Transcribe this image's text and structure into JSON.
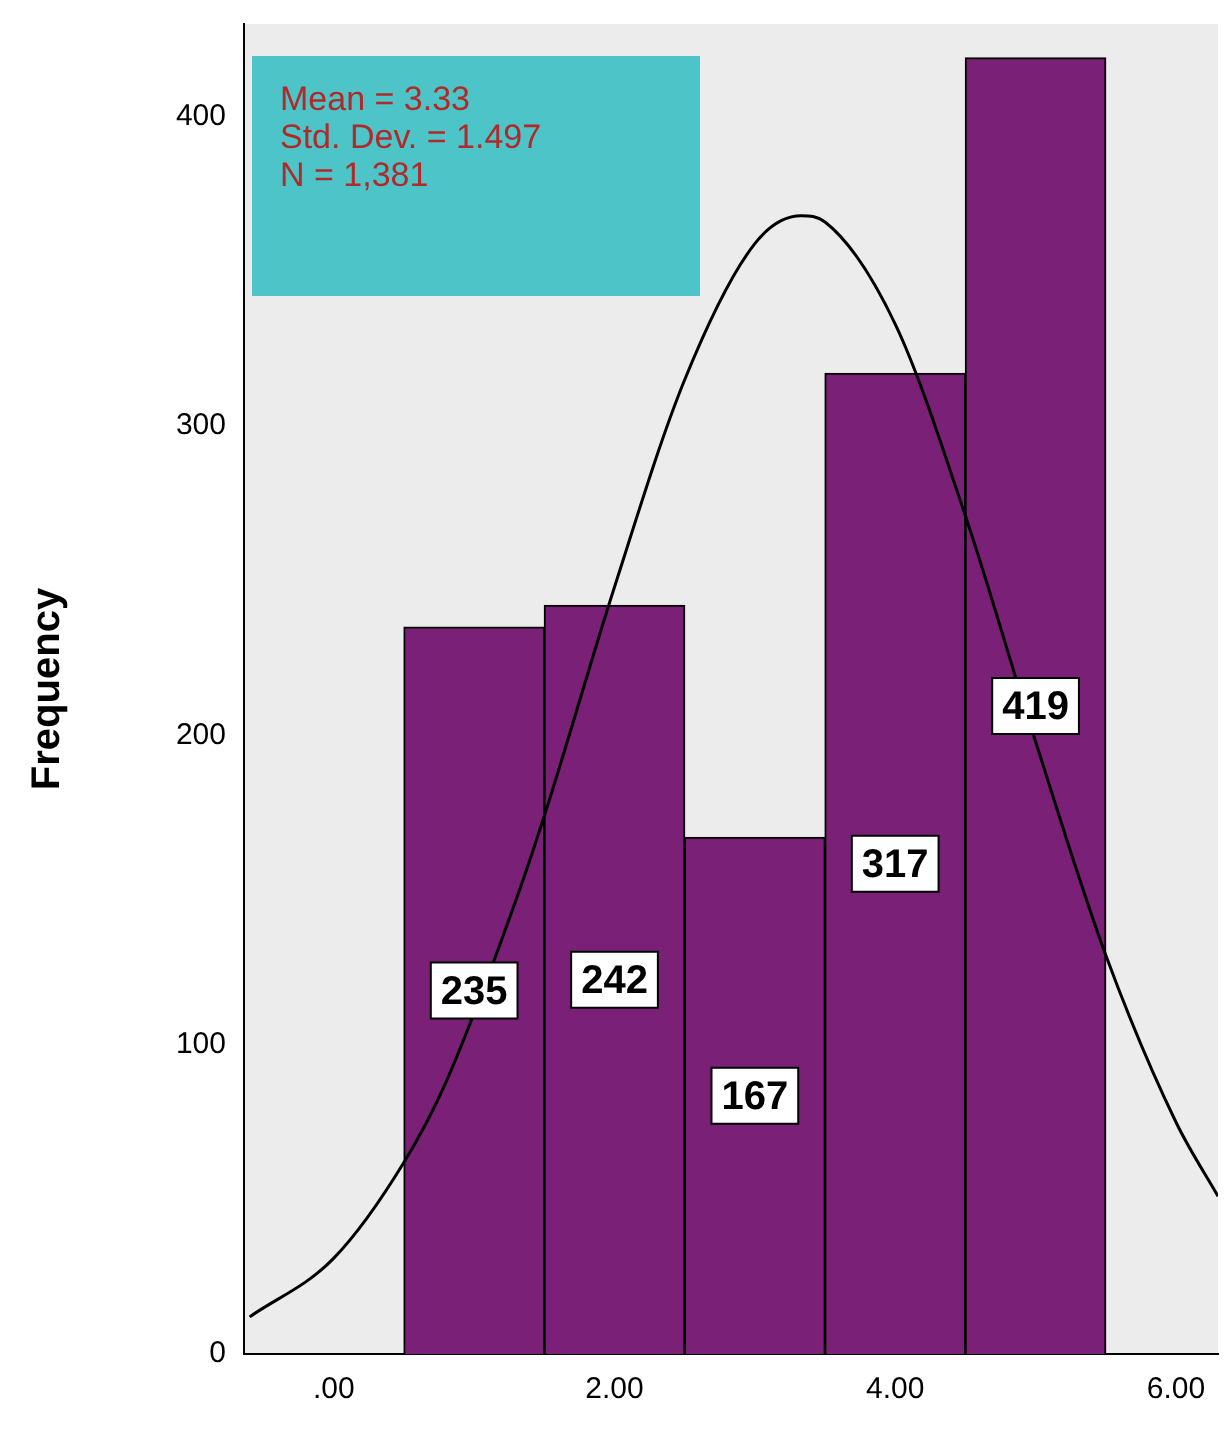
{
  "chart_data": {
    "type": "histogram",
    "ylabel": "Frequency",
    "series": [
      {
        "bins": [
          0.5,
          1.5,
          2.5,
          3.5,
          4.5,
          5.5
        ],
        "values": [
          235,
          242,
          167,
          317,
          419
        ],
        "value_labels": [
          "235",
          "242",
          "167",
          "317",
          "419"
        ],
        "color": "#7b2077"
      },
      {
        "type": "line",
        "x": [
          -0.6,
          0,
          0.5,
          0.8,
          1.3,
          1.5,
          2,
          2.5,
          3,
          3.33,
          3.5,
          4,
          4.5,
          5,
          5.5,
          6,
          6.3
        ],
        "values": [
          12,
          31,
          62,
          88,
          147,
          174,
          248,
          315,
          359,
          368,
          366,
          333,
          271,
          198,
          129,
          75,
          51
        ],
        "color": "#000000"
      }
    ],
    "xlim": [
      -0.64,
      6.3
    ],
    "xticks": [
      {
        "value": 0,
        "label": ".00"
      },
      {
        "value": 2,
        "label": "2.00"
      },
      {
        "value": 4,
        "label": "4.00"
      },
      {
        "value": 6,
        "label": "6.00"
      }
    ],
    "ylim": [
      0,
      430
    ],
    "yticks": [
      0,
      100,
      200,
      300,
      400
    ],
    "grid": false,
    "legend": false,
    "marker": "none",
    "annotations": [
      "Mean = 3.33",
      "Std. Dev. = 1.497",
      "N = 1,381"
    ]
  }
}
